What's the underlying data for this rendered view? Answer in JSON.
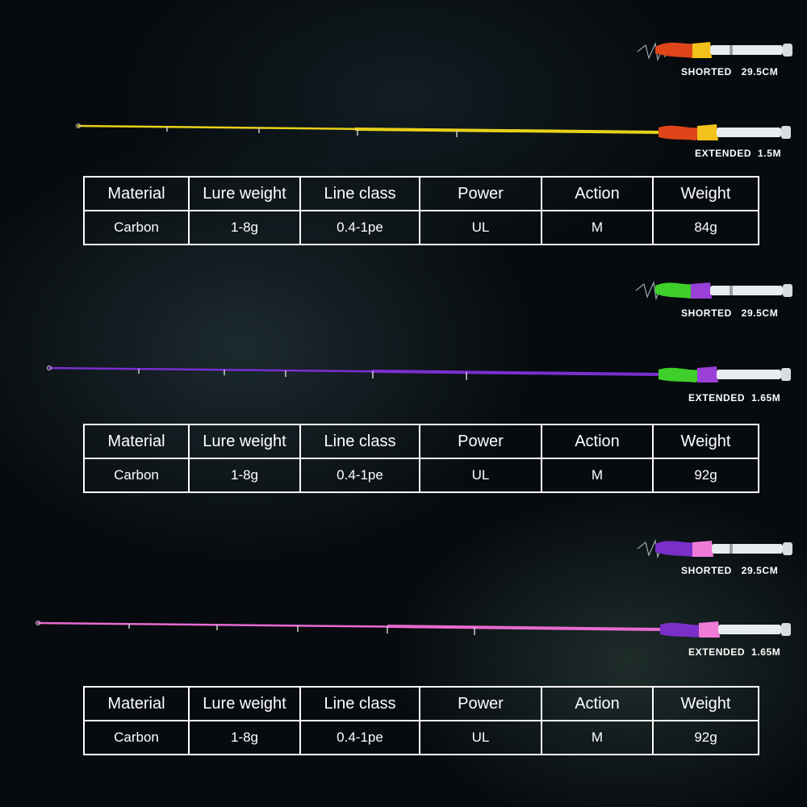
{
  "headers": [
    "Material",
    "Lure weight",
    "Line class",
    "Power",
    "Action",
    "Weight"
  ],
  "rods": [
    {
      "shorted_label": "SHORTED   29.5CM",
      "extended_label": "EXTENDED  1.5M",
      "blank_color": "#e8d21a",
      "grip_front_color": "#e0451a",
      "grip_rear_color": "#f2c21a",
      "values": [
        "Carbon",
        "1-8g",
        "0.4-1pe",
        "UL",
        "M",
        "84g"
      ]
    },
    {
      "shorted_label": "SHORTED   29.5CM",
      "extended_label": "EXTENDED  1.65M",
      "blank_color": "#7a2fd0",
      "grip_front_color": "#3ecf2a",
      "grip_rear_color": "#9a3fd8",
      "values": [
        "Carbon",
        "1-8g",
        "0.4-1pe",
        "UL",
        "M",
        "92g"
      ]
    },
    {
      "shorted_label": "SHORTED   29.5CM",
      "extended_label": "EXTENDED  1.65M",
      "blank_color": "#e86ad0",
      "grip_front_color": "#7a2fc8",
      "grip_rear_color": "#f07ad8",
      "values": [
        "Carbon",
        "1-8g",
        "0.4-1pe",
        "UL",
        "M",
        "92g"
      ]
    }
  ]
}
